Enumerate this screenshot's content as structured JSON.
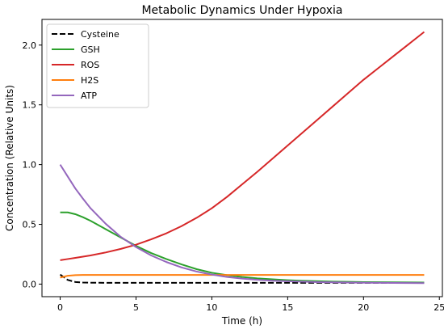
{
  "chart_data": {
    "type": "line",
    "title": "Metabolic Dynamics Under Hypoxia",
    "xlabel": "Time (h)",
    "ylabel": "Concentration (Relative Units)",
    "xlim": [
      -1.2,
      25.2
    ],
    "ylim": [
      -0.105,
      2.215
    ],
    "xticks": [
      0,
      5,
      10,
      15,
      20,
      25
    ],
    "yticks": [
      0.0,
      0.5,
      1.0,
      1.5,
      2.0
    ],
    "xtick_labels": [
      "0",
      "5",
      "10",
      "15",
      "20",
      "25"
    ],
    "ytick_labels": [
      "0.0",
      "0.5",
      "1.0",
      "1.5",
      "2.0"
    ],
    "grid": false,
    "legend_position": "top-left",
    "x": [
      0,
      0.5,
      1,
      1.5,
      2,
      3,
      4,
      5,
      6,
      7,
      8,
      9,
      10,
      11,
      12,
      13,
      14,
      15,
      16,
      17,
      18,
      19,
      20,
      21,
      22,
      23,
      24
    ],
    "series": [
      {
        "name": "Cysteine",
        "color": "#000000",
        "dash": "dashed",
        "values": [
          0.08,
          0.035,
          0.018,
          0.013,
          0.012,
          0.011,
          0.011,
          0.011,
          0.011,
          0.011,
          0.011,
          0.011,
          0.011,
          0.011,
          0.011,
          0.011,
          0.011,
          0.011,
          0.011,
          0.011,
          0.011,
          0.011,
          0.011,
          0.011,
          0.011,
          0.011,
          0.011
        ]
      },
      {
        "name": "GSH",
        "color": "#2ca02c",
        "dash": "solid",
        "values": [
          0.6,
          0.6,
          0.585,
          0.56,
          0.53,
          0.46,
          0.39,
          0.32,
          0.26,
          0.21,
          0.165,
          0.125,
          0.095,
          0.075,
          0.06,
          0.048,
          0.04,
          0.033,
          0.028,
          0.024,
          0.021,
          0.019,
          0.017,
          0.016,
          0.015,
          0.014,
          0.013
        ]
      },
      {
        "name": "ROS",
        "color": "#d62728",
        "dash": "solid",
        "values": [
          0.2,
          0.21,
          0.22,
          0.23,
          0.24,
          0.265,
          0.295,
          0.33,
          0.375,
          0.425,
          0.485,
          0.555,
          0.635,
          0.73,
          0.835,
          0.94,
          1.05,
          1.16,
          1.27,
          1.38,
          1.49,
          1.6,
          1.71,
          1.81,
          1.91,
          2.01,
          2.11
        ]
      },
      {
        "name": "H2S",
        "color": "#ff7f0e",
        "dash": "solid",
        "values": [
          0.055,
          0.07,
          0.075,
          0.077,
          0.077,
          0.077,
          0.077,
          0.077,
          0.077,
          0.077,
          0.077,
          0.077,
          0.077,
          0.077,
          0.077,
          0.077,
          0.077,
          0.077,
          0.077,
          0.077,
          0.077,
          0.077,
          0.077,
          0.077,
          0.077,
          0.077,
          0.077
        ]
      },
      {
        "name": "ATP",
        "color": "#9467bd",
        "dash": "solid",
        "values": [
          1.0,
          0.9,
          0.8,
          0.715,
          0.635,
          0.505,
          0.395,
          0.31,
          0.24,
          0.185,
          0.14,
          0.105,
          0.08,
          0.06,
          0.046,
          0.036,
          0.029,
          0.024,
          0.02,
          0.017,
          0.015,
          0.013,
          0.012,
          0.011,
          0.01,
          0.009,
          0.008
        ]
      }
    ]
  }
}
